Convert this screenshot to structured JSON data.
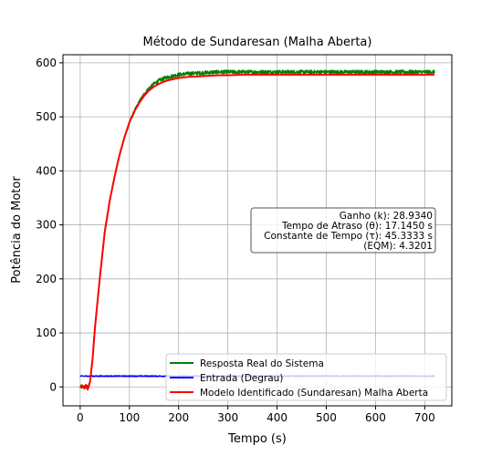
{
  "chart_data": {
    "type": "line",
    "title": "Método de Sundaresan (Malha Aberta)",
    "xlabel": "Tempo (s)",
    "ylabel": "Potência do Motor",
    "xlim": [
      -35,
      755
    ],
    "ylim": [
      -35,
      615
    ],
    "xticks": [
      0,
      100,
      200,
      300,
      400,
      500,
      600,
      700
    ],
    "yticks": [
      0,
      100,
      200,
      300,
      400,
      500,
      600
    ],
    "grid": true,
    "legend_position": "lower-right",
    "series": [
      {
        "name": "Resposta Real do Sistema",
        "color": "#008000",
        "style": "noisy",
        "x": [
          0,
          10,
          17,
          20,
          25,
          30,
          40,
          50,
          60,
          70,
          80,
          90,
          100,
          110,
          120,
          130,
          140,
          150,
          160,
          170,
          180,
          190,
          200,
          220,
          240,
          260,
          280,
          300,
          330,
          360,
          400,
          450,
          500,
          550,
          600,
          650,
          720
        ],
        "y": [
          0,
          0,
          0,
          10,
          50,
          110,
          203,
          288,
          345,
          390,
          430,
          462,
          490,
          510,
          528,
          542,
          553,
          561,
          567,
          571,
          574,
          576,
          578,
          580,
          581,
          582,
          583,
          583,
          583,
          583,
          583,
          583,
          583,
          583,
          583,
          583,
          583
        ]
      },
      {
        "name": "Entrada (Degrau)",
        "color": "#0000ff",
        "style": "noisy",
        "x": [
          0,
          720
        ],
        "y": [
          20,
          20
        ]
      },
      {
        "name": "Modelo Identificado (Sundaresan) Malha Aberta",
        "color": "#ff0000",
        "style": "line",
        "x": [
          0,
          4,
          8,
          12,
          15,
          17,
          20,
          25,
          30,
          40,
          50,
          60,
          70,
          80,
          90,
          100,
          110,
          120,
          130,
          140,
          150,
          160,
          170,
          180,
          190,
          200,
          220,
          240,
          260,
          280,
          300,
          330,
          360,
          400,
          450,
          500,
          550,
          600,
          650,
          720
        ],
        "y": [
          0,
          3,
          -3,
          4,
          -5,
          0,
          10,
          50,
          110,
          203,
          288,
          345,
          390,
          430,
          462,
          490,
          510,
          526,
          539,
          549,
          556,
          561,
          565,
          568,
          570,
          572,
          574,
          575,
          576,
          577,
          577,
          578,
          578,
          578,
          578,
          578,
          578,
          578,
          578,
          578
        ]
      }
    ],
    "annotation": [
      "Ganho (k): 28.9340",
      "Tempo de Atraso (θ): 17.1450 s",
      "Constante de Tempo (τ): 45.3333 s",
      "(EQM): 4.3201"
    ]
  }
}
